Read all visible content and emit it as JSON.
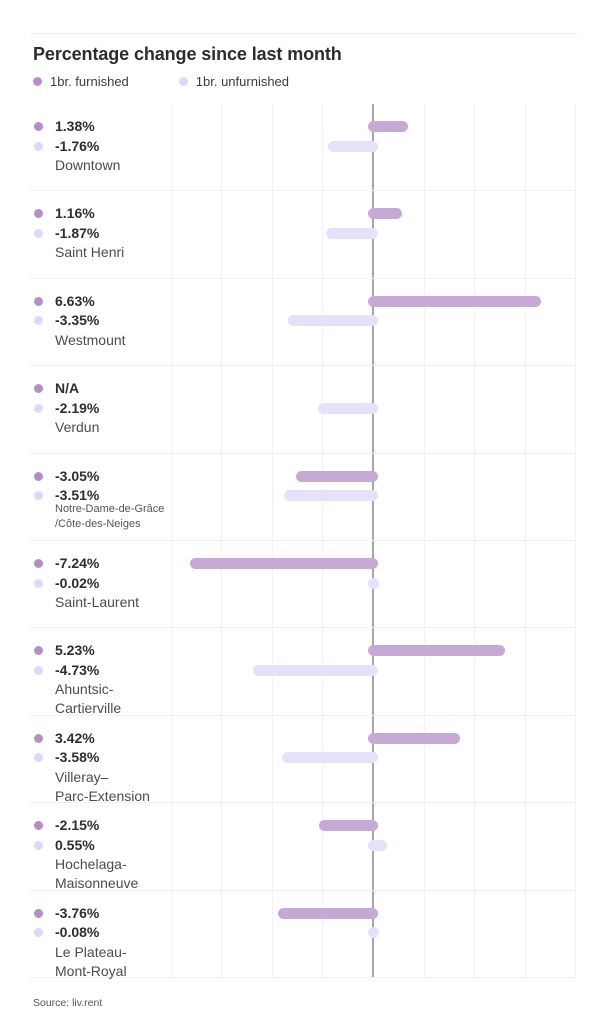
{
  "title": "Percentage change since last month",
  "legend": [
    {
      "label": "1br. furnished"
    },
    {
      "label": "1br. unfurnished"
    }
  ],
  "source": "Source: liv.rent",
  "colors": {
    "furnished_bar": "#c7a9d6",
    "furnished_dot": "#b58fc4",
    "unfurnished_bar": "#e6e1f9",
    "unfurnished_dot": "#ded7f5",
    "zero_line": "#a8a5ab",
    "gridline": "#f3f1f4"
  },
  "chart_data": {
    "type": "bar",
    "orientation": "horizontal",
    "title": "Percentage change since last month",
    "series": [
      "1br. furnished",
      "1br. unfurnished"
    ],
    "unit": "%",
    "axis": {
      "min": -8,
      "max": 8,
      "step": 2,
      "grid": true,
      "zero_line": true,
      "tick_labels_visible": false
    },
    "legend_position": "top-left",
    "rows": [
      {
        "name": "Downtown",
        "name_lines": [
          "Downtown"
        ],
        "small_name": false,
        "furnished": 1.38,
        "furnished_label": "1.38%",
        "unfurnished": -1.76,
        "unfurnished_label": "-1.76%"
      },
      {
        "name": "Saint Henri",
        "name_lines": [
          "Saint Henri"
        ],
        "small_name": false,
        "furnished": 1.16,
        "furnished_label": "1.16%",
        "unfurnished": -1.87,
        "unfurnished_label": "-1.87%"
      },
      {
        "name": "Westmount",
        "name_lines": [
          "Westmount"
        ],
        "small_name": false,
        "furnished": 6.63,
        "furnished_label": "6.63%",
        "unfurnished": -3.35,
        "unfurnished_label": "-3.35%"
      },
      {
        "name": "Verdun",
        "name_lines": [
          "Verdun"
        ],
        "small_name": false,
        "furnished": null,
        "furnished_label": "N/A",
        "unfurnished": -2.19,
        "unfurnished_label": "-2.19%"
      },
      {
        "name": "Notre-Dame-de-Grâce /Côte-des-Neiges",
        "name_lines": [
          "Notre-Dame-de-Grâce",
          "/Côte-des-Neiges"
        ],
        "small_name": true,
        "furnished": -3.05,
        "furnished_label": "-3.05%",
        "unfurnished": -3.51,
        "unfurnished_label": "-3.51%"
      },
      {
        "name": "Saint-Laurent",
        "name_lines": [
          "Saint-Laurent"
        ],
        "small_name": false,
        "furnished": -7.24,
        "furnished_label": "-7.24%",
        "unfurnished": -0.02,
        "unfurnished_label": "-0.02%"
      },
      {
        "name": "Ahuntsic-Cartierville",
        "name_lines": [
          "Ahuntsic-",
          "Cartierville"
        ],
        "small_name": false,
        "furnished": 5.23,
        "furnished_label": "5.23%",
        "unfurnished": -4.73,
        "unfurnished_label": "-4.73%"
      },
      {
        "name": "Villeray–Parc-Extension",
        "name_lines": [
          "Villeray–",
          "Parc-Extension"
        ],
        "small_name": false,
        "furnished": 3.42,
        "furnished_label": "3.42%",
        "unfurnished": -3.58,
        "unfurnished_label": "-3.58%"
      },
      {
        "name": "Hochelaga-Maisonneuve",
        "name_lines": [
          "Hochelaga-",
          "Maisonneuve"
        ],
        "small_name": false,
        "furnished": -2.15,
        "furnished_label": "-2.15%",
        "unfurnished": 0.55,
        "unfurnished_label": "0.55%"
      },
      {
        "name": "Le Plateau-Mont-Royal",
        "name_lines": [
          "Le Plateau-",
          "Mont-Royal"
        ],
        "small_name": false,
        "furnished": -3.76,
        "furnished_label": "-3.76%",
        "unfurnished": -0.08,
        "unfurnished_label": "-0.08%"
      }
    ]
  }
}
